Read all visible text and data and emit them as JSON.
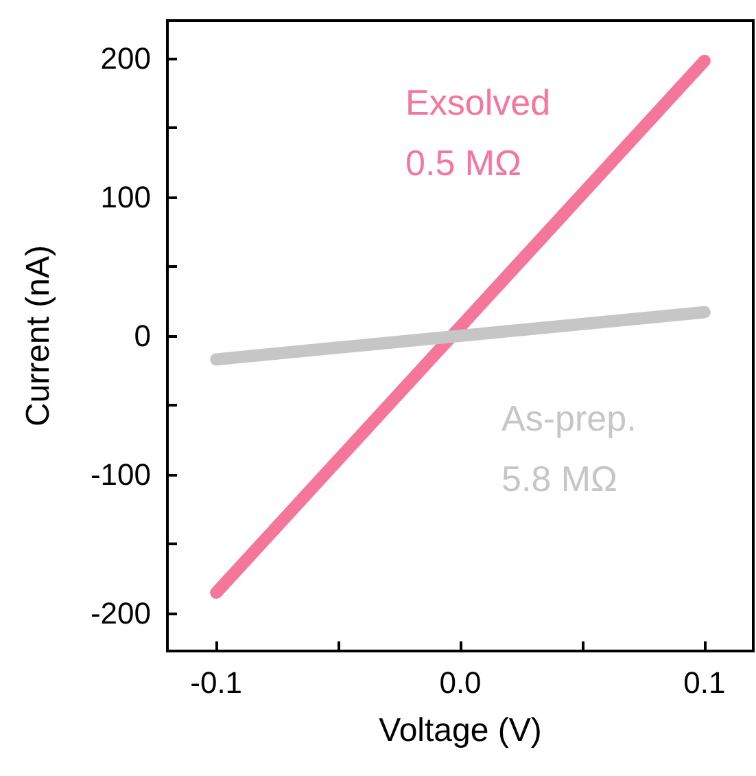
{
  "chart_data": {
    "type": "line",
    "xlabel": "Voltage (V)",
    "ylabel": "Current (nA)",
    "xlim": [
      -0.12,
      0.12
    ],
    "xticks": [
      -0.1,
      {
        "value": -0.05,
        "label": null
      },
      {
        "value": 0,
        "label": "0.0"
      },
      {
        "value": 0.05,
        "label": null
      },
      0.1
    ],
    "ylim": [
      -227,
      227
    ],
    "yticks": [
      -200,
      {
        "value": -150,
        "label": null
      },
      -100,
      {
        "value": -50,
        "label": null
      },
      0,
      {
        "value": 50,
        "label": null
      },
      100,
      {
        "value": 150,
        "label": null
      },
      200
    ],
    "x": [
      -0.1,
      0.1
    ],
    "series": [
      {
        "name": "Exsolved",
        "color": "#f4769a",
        "values": [
          -185,
          198
        ]
      },
      {
        "name": "As-prep.",
        "color": "#c6c6c6",
        "values": [
          -17,
          17
        ]
      }
    ],
    "annotations": [
      "0.5 MΩ",
      "5.8 MΩ"
    ],
    "grid": false,
    "legend": false,
    "line_style": "solid"
  }
}
